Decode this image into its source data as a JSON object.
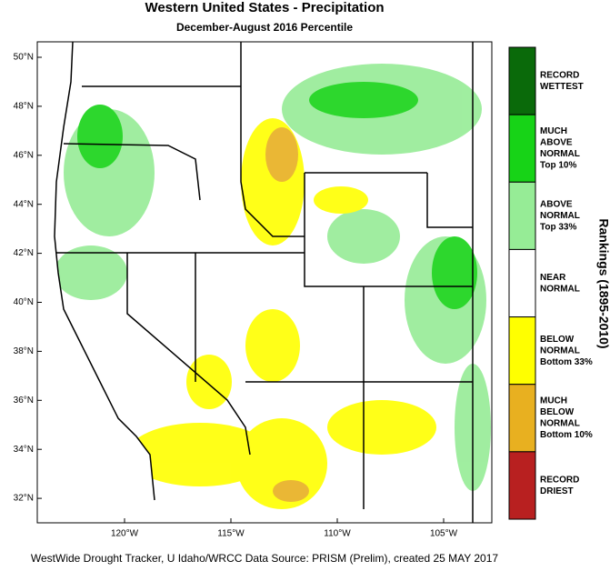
{
  "title": "Western United States - Precipitation",
  "subtitle": "December-August 2016 Percentile",
  "lat_labels": [
    "50°N",
    "48°N",
    "46°N",
    "44°N",
    "42°N",
    "40°N",
    "38°N",
    "36°N",
    "34°N",
    "32°N"
  ],
  "lon_labels": [
    "120°W",
    "115°W",
    "110°W",
    "105°W"
  ],
  "legend_title": "Rankings (1895-2010)",
  "legend": [
    {
      "lines": [
        "RECORD",
        "WETTEST"
      ],
      "color": "#0a6a0a"
    },
    {
      "lines": [
        "MUCH",
        "ABOVE",
        "NORMAL",
        "Top 10%"
      ],
      "color": "#17d317"
    },
    {
      "lines": [
        "ABOVE",
        "NORMAL",
        "Top 33%"
      ],
      "color": "#96ec96"
    },
    {
      "lines": [
        "NEAR",
        "NORMAL"
      ],
      "color": "#ffffff"
    },
    {
      "lines": [
        "BELOW",
        "NORMAL",
        "Bottom 33%"
      ],
      "color": "#ffff00"
    },
    {
      "lines": [
        "MUCH",
        "BELOW",
        "NORMAL",
        "Bottom 10%"
      ],
      "color": "#e8b020"
    },
    {
      "lines": [
        "RECORD",
        "DRIEST"
      ],
      "color": "#b82020"
    }
  ],
  "footer": "WestWide Drought Tracker, U Idaho/WRCC Data Source: PRISM (Prelim), created 25 MAY 2017"
}
